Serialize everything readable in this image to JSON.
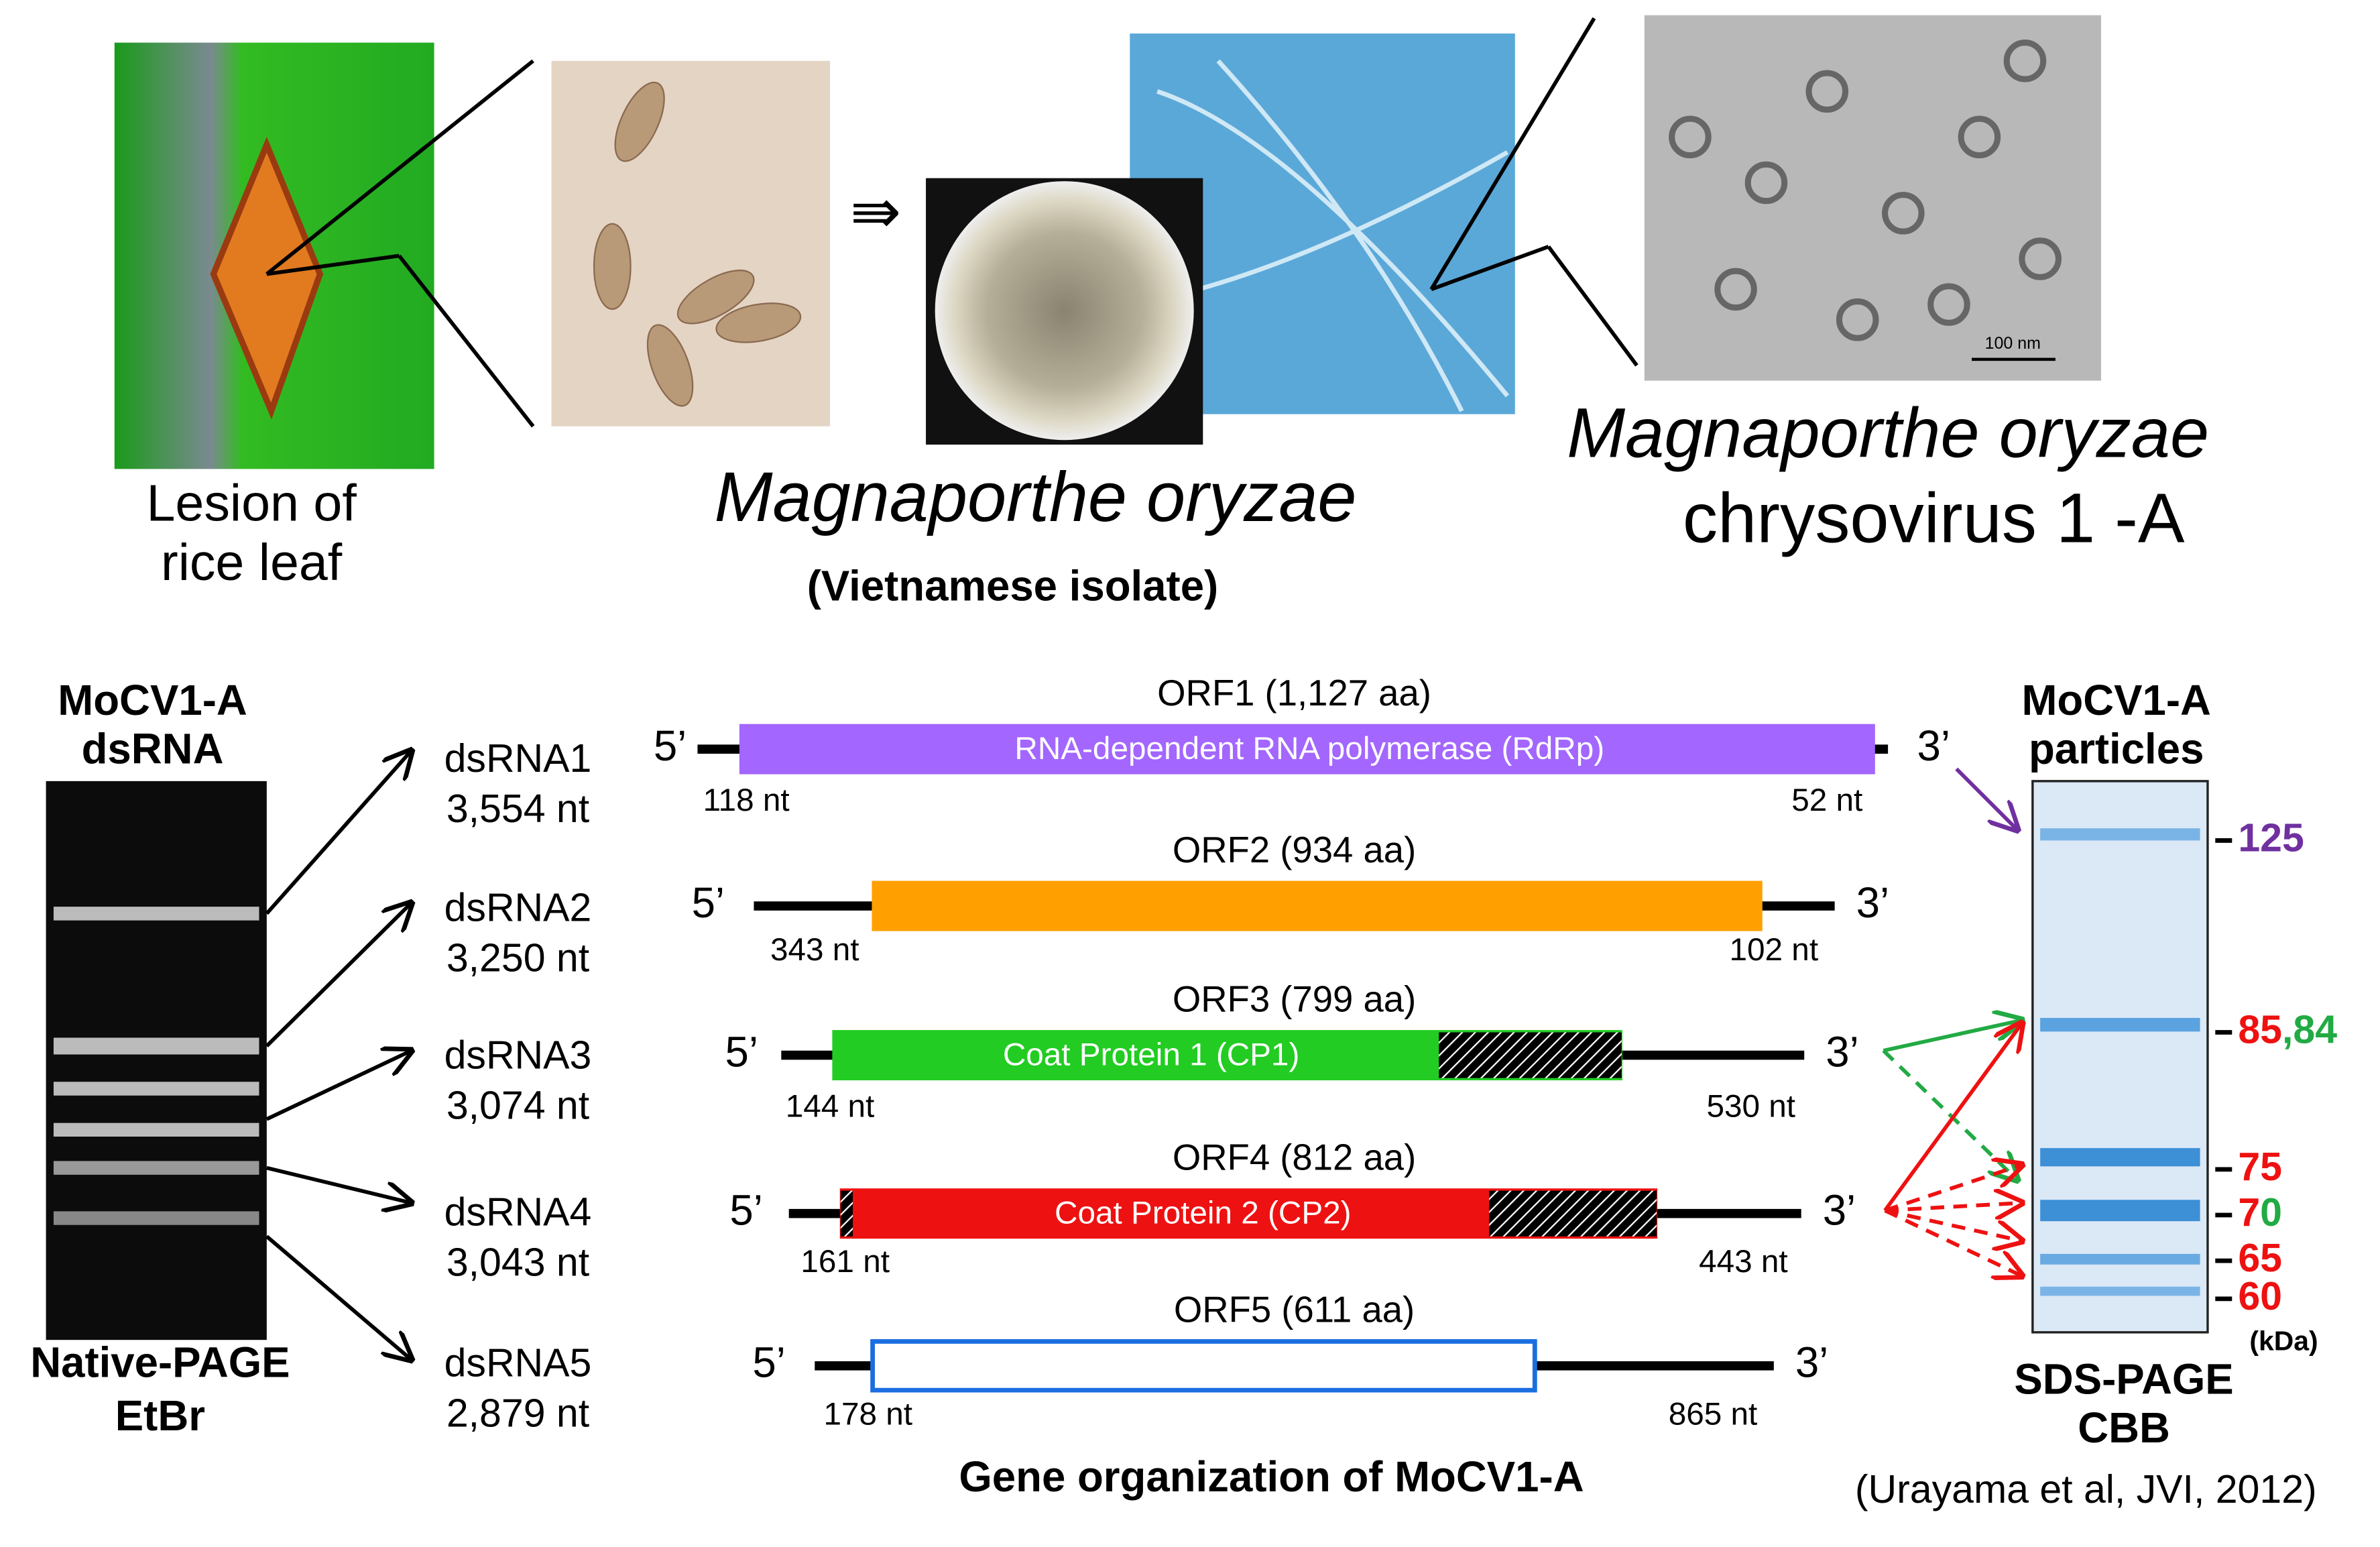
{
  "top": {
    "lesion_label": [
      "Lesion of",
      "rice leaf"
    ],
    "fungus_name": "Magnaporthe oryzae",
    "isolate": "(Vietnamese isolate)",
    "virus_name": "Magnaporthe oryzae",
    "virus_name_2": "chrysovirus 1 -A",
    "scale_bar": "100 nm"
  },
  "gel": {
    "title": [
      "MoCV1-A",
      "dsRNA"
    ],
    "footer": [
      "Native-PAGE",
      "EtBr"
    ]
  },
  "segments": [
    {
      "name": "dsRNA1",
      "length": "3,554 nt"
    },
    {
      "name": "dsRNA2",
      "length": "3,250 nt"
    },
    {
      "name": "dsRNA3",
      "length": "3,074 nt"
    },
    {
      "name": "dsRNA4",
      "length": "3,043 nt"
    },
    {
      "name": "dsRNA5",
      "length": "2,879 nt"
    }
  ],
  "orfs": [
    {
      "label": "ORF1 (1,127 aa)",
      "protein": "RNA-dependent RNA polymerase (RdRp)",
      "five_prime": "5’",
      "three_prime": "3’",
      "utr5": "118 nt",
      "utr3": "52 nt",
      "color": "#a366ff"
    },
    {
      "label": "ORF2 (934 aa)",
      "five_prime": "5’",
      "three_prime": "3’",
      "utr5": "343 nt",
      "utr3": "102 nt",
      "color": "#ffa000"
    },
    {
      "label": "ORF3 (799 aa)",
      "protein": "Coat Protein 1 (CP1)",
      "five_prime": "5’",
      "three_prime": "3’",
      "utr5": "144 nt",
      "utr3": "530 nt",
      "color": "#22cc22"
    },
    {
      "label": "ORF4 (812 aa)",
      "protein": "Coat Protein 2 (CP2)",
      "five_prime": "5’",
      "three_prime": "3’",
      "utr5": "161 nt",
      "utr3": "443 nt",
      "color": "#ee1111"
    },
    {
      "label": "ORF5 (611 aa)",
      "five_prime": "5’",
      "three_prime": "3’",
      "utr5": "178 nt",
      "utr3": "865 nt",
      "color": "#ffffff"
    }
  ],
  "gene_title": "Gene organization of MoCV1-A",
  "sds": {
    "title": [
      "MoCV1-A",
      "particles"
    ],
    "markers": [
      [
        {
          "text": "125",
          "color": "#7030a0"
        }
      ],
      [
        {
          "text": "85",
          "color": "#ee1111"
        },
        {
          "text": ",",
          "color": "#22aa44"
        },
        {
          "text": "84",
          "color": "#22aa44"
        }
      ],
      [
        {
          "text": "75",
          "color": "#ee1111"
        }
      ],
      [
        {
          "text": "7",
          "color": "#ee1111"
        },
        {
          "text": "0",
          "color": "#22aa44"
        }
      ],
      [
        {
          "text": "65",
          "color": "#ee1111"
        }
      ],
      [
        {
          "text": "60",
          "color": "#ee1111"
        }
      ]
    ],
    "unit": "(kDa)",
    "footer": [
      "SDS-PAGE",
      "CBB"
    ]
  },
  "citation": "(Urayama et al, JVI, 2012)"
}
